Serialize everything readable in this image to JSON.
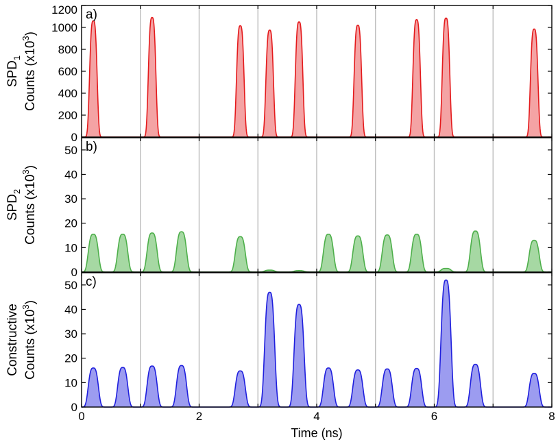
{
  "chart_data": [
    {
      "type": "area",
      "panel_label": "a)",
      "ylabel_line1": "SPD",
      "ylabel_line1_sub": "1",
      "ylabel_line2": "Counts (x10",
      "ylabel_line2_sup": "3",
      "ylabel_line2_end": ")",
      "ylim": [
        0,
        1200
      ],
      "yticks": [
        0,
        200,
        400,
        600,
        800,
        1000,
        1200
      ],
      "xlim": [
        0,
        8
      ],
      "color": "#e41a1c",
      "fill": "#f4a3a4",
      "peak_width_ns": 0.06,
      "peaks": [
        {
          "x": 0.2,
          "y": 1060
        },
        {
          "x": 1.2,
          "y": 1090
        },
        {
          "x": 2.7,
          "y": 1015
        },
        {
          "x": 3.2,
          "y": 975
        },
        {
          "x": 3.7,
          "y": 1050
        },
        {
          "x": 4.7,
          "y": 1020
        },
        {
          "x": 5.7,
          "y": 1070
        },
        {
          "x": 6.2,
          "y": 1085
        },
        {
          "x": 7.7,
          "y": 985
        }
      ],
      "vlines": [
        1,
        2,
        3,
        4,
        5,
        6,
        7
      ]
    },
    {
      "type": "area",
      "panel_label": "b)",
      "ylabel_line1": "SPD",
      "ylabel_line1_sub": "2",
      "ylabel_line2": "Counts (x10",
      "ylabel_line2_sup": "3",
      "ylabel_line2_end": ")",
      "ylim": [
        0,
        55
      ],
      "yticks": [
        0,
        10,
        20,
        30,
        40,
        50
      ],
      "xlim": [
        0,
        8
      ],
      "color": "#4daf4a",
      "fill": "#a6d8a3",
      "peak_width_ns": 0.08,
      "peaks": [
        {
          "x": 0.2,
          "y": 15.5
        },
        {
          "x": 0.7,
          "y": 15.5
        },
        {
          "x": 1.2,
          "y": 16
        },
        {
          "x": 1.7,
          "y": 16.5
        },
        {
          "x": 2.7,
          "y": 14.5
        },
        {
          "x": 3.2,
          "y": 0.8
        },
        {
          "x": 3.7,
          "y": 0.6
        },
        {
          "x": 4.2,
          "y": 15.5
        },
        {
          "x": 4.7,
          "y": 14.8
        },
        {
          "x": 5.2,
          "y": 15.2
        },
        {
          "x": 5.7,
          "y": 15.5
        },
        {
          "x": 6.2,
          "y": 1.5
        },
        {
          "x": 6.7,
          "y": 16.8
        },
        {
          "x": 7.7,
          "y": 13
        }
      ],
      "vlines": [
        1,
        2,
        3,
        4,
        5,
        6,
        7
      ]
    },
    {
      "type": "area",
      "panel_label": "c)",
      "ylabel_line1": "Constructive",
      "ylabel_line1_sub": "",
      "ylabel_line2": "Counts (x10",
      "ylabel_line2_sup": "3",
      "ylabel_line2_end": ")",
      "ylim": [
        0,
        55
      ],
      "yticks": [
        0,
        10,
        20,
        30,
        40,
        50
      ],
      "xlim": [
        0,
        8
      ],
      "xticks": [
        0,
        2,
        4,
        6,
        8
      ],
      "xlabel": "Time (ns)",
      "color": "#1f1fdd",
      "fill": "#9c9cf0",
      "peak_width_ns": 0.08,
      "peaks": [
        {
          "x": 0.2,
          "y": 16
        },
        {
          "x": 0.7,
          "y": 16.2
        },
        {
          "x": 1.2,
          "y": 16.8
        },
        {
          "x": 1.7,
          "y": 17
        },
        {
          "x": 2.7,
          "y": 14.8
        },
        {
          "x": 3.2,
          "y": 47
        },
        {
          "x": 3.7,
          "y": 42
        },
        {
          "x": 4.2,
          "y": 16
        },
        {
          "x": 4.7,
          "y": 15.2
        },
        {
          "x": 5.2,
          "y": 15.6
        },
        {
          "x": 5.7,
          "y": 15.8
        },
        {
          "x": 6.2,
          "y": 52
        },
        {
          "x": 6.7,
          "y": 17.5
        },
        {
          "x": 7.7,
          "y": 13.8
        }
      ],
      "vlines": [
        1,
        2,
        3,
        4,
        5,
        6,
        7
      ]
    }
  ]
}
